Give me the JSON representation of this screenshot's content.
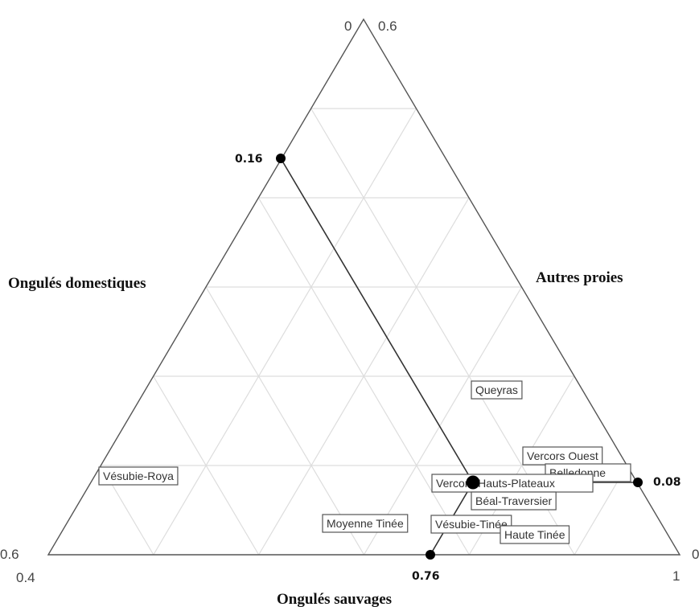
{
  "chart_data": {
    "type": "scatter",
    "subtype": "ternary",
    "title": "",
    "axes": {
      "left_edge": "Ongulés domestiques",
      "right_edge": "Autres proies",
      "bottom_edge": "Ongulés sauvages"
    },
    "corner_labels": {
      "apex_left": "0",
      "apex_right": "0.6",
      "bottom_left_upper": "0.6",
      "bottom_left_lower": "0.4",
      "bottom_right_upper": "0",
      "bottom_right_lower": "1"
    },
    "grid": true,
    "grid_color": "#dddddd",
    "triangle_color": "#555555",
    "marker_color": "#000000",
    "reference_point": {
      "label": "Vercors-Hauts-Plateaux",
      "domestiques": 0.16,
      "autres": 0.08,
      "sauvages": 0.76
    },
    "reference_markers": [
      {
        "label": "0.16",
        "edge": "left",
        "value": 0.16
      },
      {
        "label": "0.08",
        "edge": "right",
        "value": 0.08
      },
      {
        "label": "0.76",
        "edge": "bottom",
        "value": 0.76
      }
    ],
    "points": [
      {
        "label": "Queyras"
      },
      {
        "label": "Vercors Ouest"
      },
      {
        "label": "Belledonne"
      },
      {
        "label": "Vésubie-Roya"
      },
      {
        "label": "Vercors-Hauts-Plateaux"
      },
      {
        "label": "Béal-Traversier"
      },
      {
        "label": "Moyenne Tinée"
      },
      {
        "label": "Vésubie-Tinée"
      },
      {
        "label": "Haute Tinée"
      }
    ]
  }
}
